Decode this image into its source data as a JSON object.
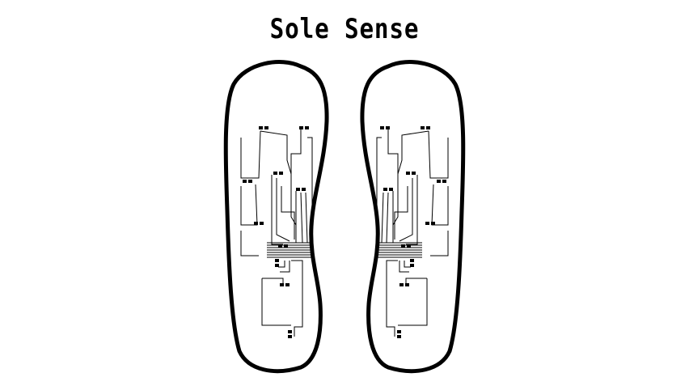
{
  "title": "Sole Sense",
  "colors": {
    "background": "#ffffff",
    "ink": "#000000"
  },
  "icons": [
    "left-sole-outline",
    "right-sole-outline",
    "sensor-pad"
  ]
}
